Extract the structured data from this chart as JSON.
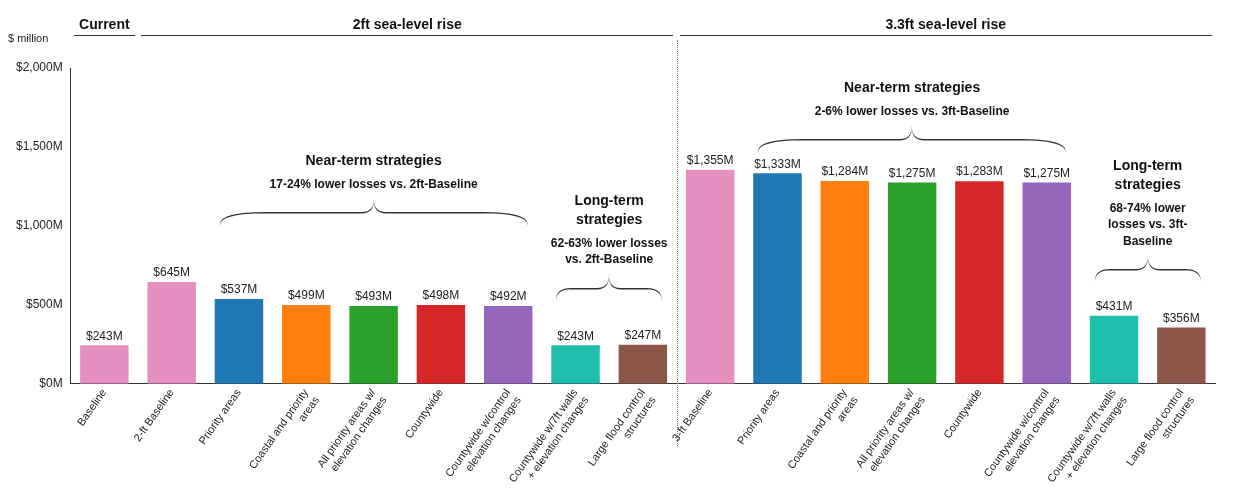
{
  "chart_data": {
    "type": "bar",
    "ylabel": "$ million",
    "categories": [
      "Baseline",
      "2-ft Baseline",
      "Priority areas",
      "Coastal and priority areas",
      "All priority areas w/ elevation changes",
      "Countywide",
      "Countywide w/control elevation changes",
      "Countywide w/7ft walls + elevation changes",
      "Large flood control structures",
      "3-ft Baseline",
      "Priority areas",
      "Coastal and priority areas",
      "All priority areas w/ elevation changes",
      "Countywide",
      "Countywide w/control elevation changes",
      "Countywide w/7ft walls + elevation changes",
      "Large flood control structures"
    ],
    "values": [
      243,
      645,
      537,
      499,
      493,
      498,
      492,
      243,
      247,
      1355,
      1333,
      1284,
      1275,
      1283,
      1275,
      431,
      356
    ],
    "colors": [
      "#e48fc0",
      "#e48fc0",
      "#1f77b4",
      "#ff7f0e",
      "#2ca02c",
      "#d62728",
      "#9467bd",
      "#1fbfb0",
      "#8c564b",
      "#e48fc0",
      "#1f77b4",
      "#ff7f0e",
      "#2ca02c",
      "#d62728",
      "#9467bd",
      "#1fbfb0",
      "#8c564b"
    ],
    "value_labels": [
      "$243M",
      "$645M",
      "$537M",
      "$499M",
      "$493M",
      "$498M",
      "$492M",
      "$243M",
      "$247M",
      "$1,355M",
      "$1,333M",
      "$1,284M",
      "$1,275M",
      "$1,283M",
      "$1,275M",
      "$431M",
      "$356M"
    ],
    "ylim": [
      0,
      2000
    ],
    "yticks": [
      {
        "value": 0,
        "label": "$0M"
      },
      {
        "value": 500,
        "label": "$500M"
      },
      {
        "value": 1000,
        "label": "$1,000M"
      },
      {
        "value": 1500,
        "label": "$1,500M"
      },
      {
        "value": 2000,
        "label": "$2,000M"
      }
    ],
    "annotations": [
      "Current",
      "2ft sea-level rise",
      "3.3ft sea-level rise",
      "Near-term strategies",
      "17-24% lower losses vs. 2ft-Baseline",
      "Long-term strategies",
      "62-63% lower losses vs. 2ft-Baseline",
      "Near-term strategies",
      "2-6% lower losses vs. 3ft-Baseline",
      "Long-term strategies",
      "68-74% lower losses vs. 3ft-Baseline"
    ]
  }
}
